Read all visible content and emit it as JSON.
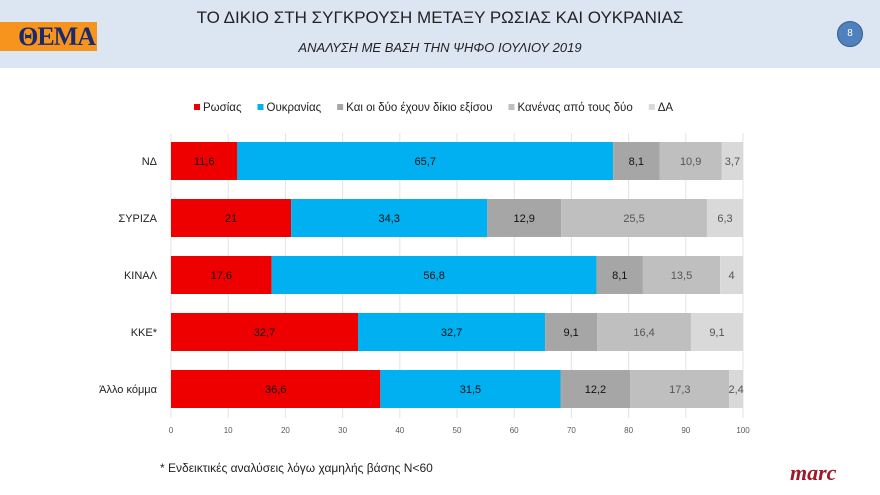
{
  "header": {
    "logo": "ΘΕΜΑ",
    "title": "ΤΟ ΔΙΚΙΟ ΣΤΗ ΣΥΓΚΡΟΥΣΗ ΜΕΤΑΞΥ ΡΩΣΙΑΣ ΚΑΙ ΟΥΚΡΑΝΙΑΣ",
    "subtitle": "ΑΝΑΛΥΣΗ ΜΕ ΒΑΣΗ ΤΗΝ ΨΗΦΟ ΙΟΥΛΙΟΥ 2019",
    "page_number": "8"
  },
  "footer": {
    "note": "* Ενδεικτικές αναλύσεις λόγω χαμηλής βάσης Ν<60",
    "brand": "marc"
  },
  "chart_data": {
    "type": "bar",
    "orientation": "horizontal",
    "stacked": true,
    "categories": [
      "ΝΔ",
      "ΣΥΡΙΖΑ",
      "ΚΙΝΑΛ",
      "ΚΚΕ*",
      "Άλλο κόμμα"
    ],
    "series": [
      {
        "name": "Ρωσίας",
        "color": "#ee0000",
        "values": [
          11.6,
          21,
          17.6,
          32.7,
          36.6
        ],
        "labels": [
          "11,6",
          "21",
          "17,6",
          "32,7",
          "36,6"
        ]
      },
      {
        "name": "Ουκρανίας",
        "color": "#00b0f0",
        "values": [
          65.7,
          34.3,
          56.8,
          32.7,
          31.5
        ],
        "labels": [
          "65,7",
          "34,3",
          "56,8",
          "32,7",
          "31,5"
        ]
      },
      {
        "name": "Και οι δύο έχουν δίκιο εξίσου",
        "color": "#a6a6a6",
        "values": [
          8.1,
          12.9,
          8.1,
          9.1,
          12.2
        ],
        "labels": [
          "8,1",
          "12,9",
          "8,1",
          "9,1",
          "12,2"
        ]
      },
      {
        "name": "Κανένας από τους δύο",
        "color": "#bfbfbf",
        "values": [
          10.9,
          25.5,
          13.5,
          16.4,
          17.3
        ],
        "labels": [
          "10,9",
          "25,5",
          "13,5",
          "16,4",
          "17,3"
        ]
      },
      {
        "name": "ΔΑ",
        "color": "#d9d9d9",
        "values": [
          3.7,
          6.3,
          4,
          9.1,
          2.4
        ],
        "labels": [
          "3,7",
          "6,3",
          "4",
          "9,1",
          "2,4"
        ]
      }
    ],
    "xlim": [
      0,
      100
    ],
    "xticks": [
      "0",
      "10",
      "20",
      "30",
      "40",
      "50",
      "60",
      "70",
      "80",
      "90",
      "100"
    ],
    "grid": true,
    "legend": "top"
  }
}
